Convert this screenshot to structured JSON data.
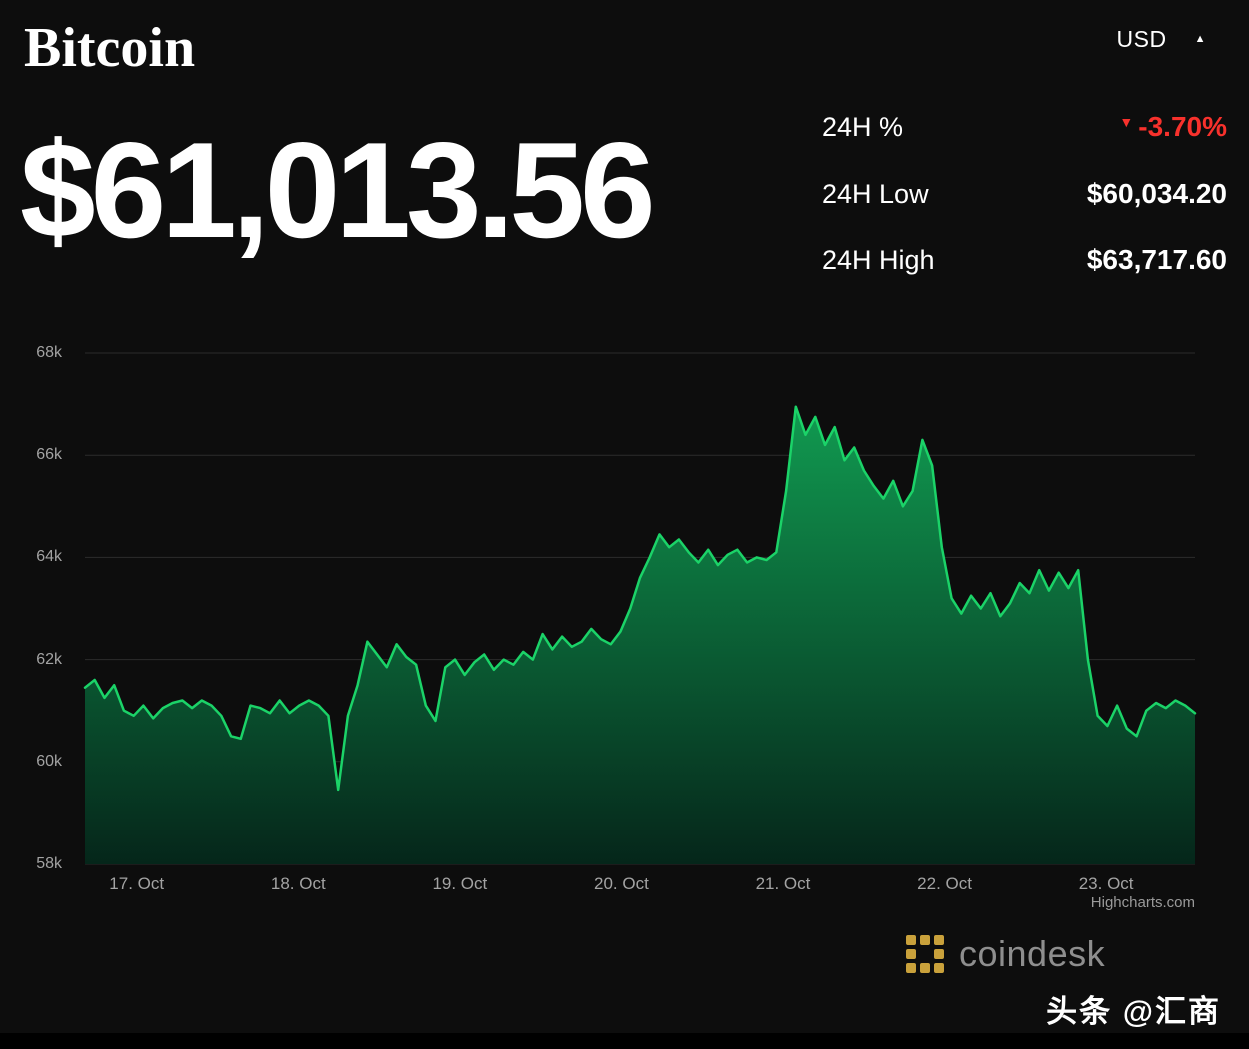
{
  "header": {
    "title": "Bitcoin",
    "currency": "USD",
    "caret_icon": "▲"
  },
  "price": {
    "current": "$61,013.56"
  },
  "stats": [
    {
      "label": "24H %",
      "value": "-3.70%",
      "direction": "down",
      "icon": "▼"
    },
    {
      "label": "24H Low",
      "value": "$60,034.20"
    },
    {
      "label": "24H High",
      "value": "$63,717.60"
    }
  ],
  "colors": {
    "line_green": "#1bd368",
    "fill_top": "#12a857",
    "fill_bottom": "#05261a",
    "down_red": "#f8312c",
    "grid": "#2c2c2c",
    "gold": "#c9a13b",
    "axis_text": "#a3a3a3"
  },
  "chart_data": {
    "type": "area",
    "title": "",
    "xlabel": "",
    "ylabel": "",
    "grid": true,
    "x_domain": [
      16.68,
      23.55
    ],
    "y_domain_k": [
      58,
      68
    ],
    "y_ticks": [
      {
        "v": 68,
        "label": "68k"
      },
      {
        "v": 66,
        "label": "66k"
      },
      {
        "v": 64,
        "label": "64k"
      },
      {
        "v": 62,
        "label": "62k"
      },
      {
        "v": 60,
        "label": "60k"
      },
      {
        "v": 58,
        "label": "58k"
      }
    ],
    "x_ticks": [
      {
        "v": 17,
        "label": "17. Oct"
      },
      {
        "v": 18,
        "label": "18. Oct"
      },
      {
        "v": 19,
        "label": "19. Oct"
      },
      {
        "v": 20,
        "label": "20. Oct"
      },
      {
        "v": 21,
        "label": "21. Oct"
      },
      {
        "v": 22,
        "label": "22. Oct"
      },
      {
        "v": 23,
        "label": "23. Oct"
      }
    ],
    "values_k": [
      61.45,
      61.6,
      61.25,
      61.5,
      61.0,
      60.9,
      61.1,
      60.85,
      61.05,
      61.15,
      61.2,
      61.05,
      61.2,
      61.1,
      60.9,
      60.5,
      60.45,
      61.1,
      61.05,
      60.95,
      61.2,
      60.95,
      61.1,
      61.2,
      61.1,
      60.9,
      59.45,
      60.9,
      61.5,
      62.35,
      62.1,
      61.85,
      62.3,
      62.05,
      61.9,
      61.1,
      60.8,
      61.85,
      62.0,
      61.7,
      61.95,
      62.1,
      61.8,
      62.0,
      61.9,
      62.15,
      62.0,
      62.5,
      62.2,
      62.45,
      62.25,
      62.35,
      62.6,
      62.4,
      62.3,
      62.55,
      63.0,
      63.6,
      64.0,
      64.45,
      64.2,
      64.35,
      64.1,
      63.9,
      64.15,
      63.85,
      64.05,
      64.15,
      63.9,
      64.0,
      63.95,
      64.1,
      65.3,
      66.95,
      66.4,
      66.75,
      66.2,
      66.55,
      65.9,
      66.15,
      65.7,
      65.4,
      65.15,
      65.5,
      65.0,
      65.3,
      66.3,
      65.8,
      64.2,
      63.2,
      62.9,
      63.25,
      63.0,
      63.3,
      62.85,
      63.1,
      63.5,
      63.3,
      63.75,
      63.35,
      63.7,
      63.4,
      63.75,
      62.0,
      60.9,
      60.7,
      61.1,
      60.65,
      60.5,
      61.0,
      61.15,
      61.05,
      61.2,
      61.1,
      60.95
    ],
    "credit": "Highcharts.com"
  },
  "footer": {
    "brand": "coindesk",
    "watermark": "头条 @汇商"
  }
}
